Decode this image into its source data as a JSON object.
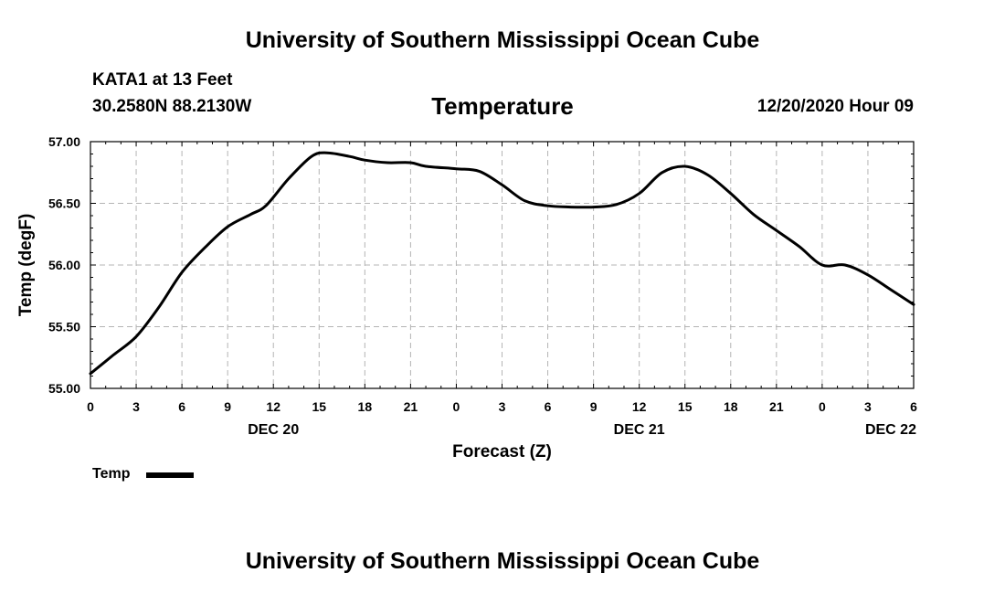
{
  "header": {
    "title_top": "University of Southern Mississippi Ocean Cube",
    "station_name": "KATA1 at 13 Feet",
    "station_coords": "30.2580N 88.2130W",
    "chart_title": "Temperature",
    "forecast_date": "12/20/2020 Hour 09"
  },
  "footer": {
    "title_bottom": "University of Southern Mississippi Ocean Cube"
  },
  "chart_data": {
    "type": "line",
    "title": "Temperature",
    "xlabel": "Forecast (Z)",
    "ylabel": "Temp (degF)",
    "ylim": [
      55.0,
      57.0
    ],
    "xlim": [
      0,
      54
    ],
    "x_unit": "hours from 12/20/2020 00Z",
    "y_ticks": [
      "55.00",
      "55.50",
      "56.00",
      "56.50",
      "57.00"
    ],
    "y_tick_values": [
      55.0,
      55.5,
      56.0,
      56.5,
      57.0
    ],
    "x_tick_hours": [
      0,
      3,
      6,
      9,
      12,
      15,
      18,
      21,
      24,
      27,
      30,
      33,
      36,
      39,
      42,
      45,
      48,
      51,
      54
    ],
    "x_tick_labels": [
      "0",
      "3",
      "6",
      "9",
      "12",
      "15",
      "18",
      "21",
      "0",
      "3",
      "6",
      "9",
      "12",
      "15",
      "18",
      "21",
      "0",
      "3",
      "6"
    ],
    "day_labels": [
      {
        "hour": 12,
        "label": "DEC 20"
      },
      {
        "hour": 36,
        "label": "DEC 21"
      },
      {
        "hour": 52.5,
        "label": "DEC 22"
      }
    ],
    "grid": true,
    "legend_position": "bottom-left",
    "series": [
      {
        "name": "Temp",
        "color": "#000000",
        "x": [
          0,
          1.5,
          3,
          4.5,
          6,
          7.5,
          9,
          10.5,
          11.5,
          13,
          14.5,
          15.5,
          17,
          18,
          19.5,
          21,
          22,
          24,
          25.5,
          27,
          28.5,
          30,
          31.5,
          33,
          34.5,
          36,
          37.5,
          39,
          40.5,
          42,
          43.5,
          45,
          46.5,
          48,
          49.5,
          51,
          52.5,
          54
        ],
        "values": [
          55.12,
          55.27,
          55.42,
          55.66,
          55.94,
          56.14,
          56.31,
          56.41,
          56.48,
          56.7,
          56.88,
          56.91,
          56.88,
          56.85,
          56.83,
          56.83,
          56.8,
          56.78,
          56.76,
          56.65,
          56.52,
          56.48,
          56.47,
          56.47,
          56.49,
          56.58,
          56.75,
          56.8,
          56.73,
          56.58,
          56.41,
          56.28,
          56.15,
          56.0,
          56.0,
          55.92,
          55.8,
          55.68
        ]
      }
    ]
  }
}
